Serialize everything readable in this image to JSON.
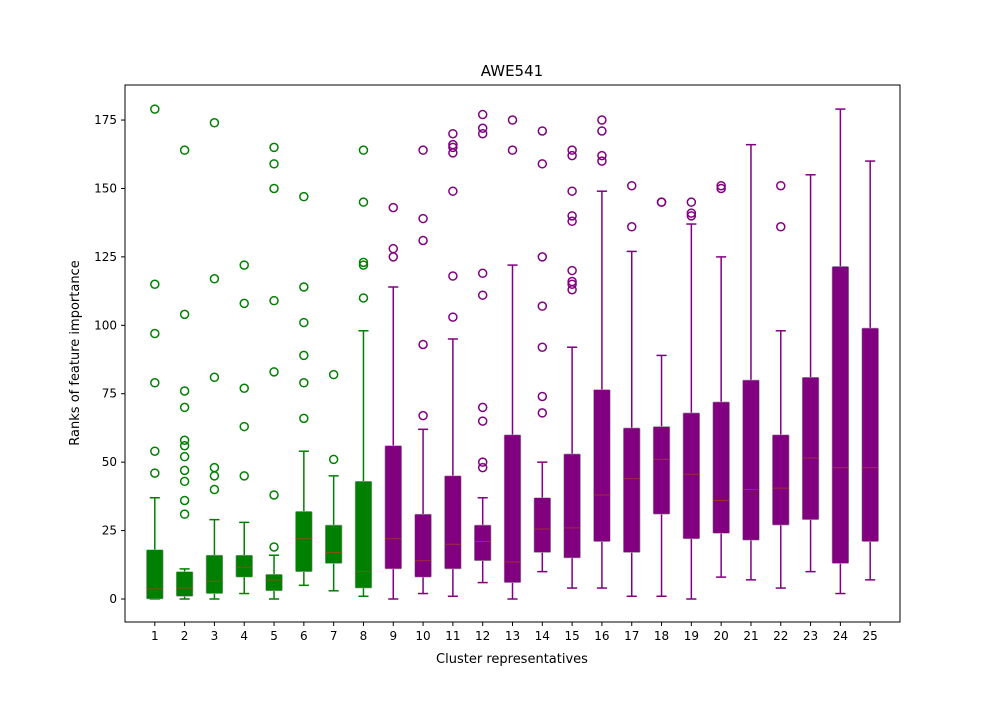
{
  "chart_data": {
    "type": "box",
    "title": "AWE541",
    "xlabel": "Cluster representatives",
    "ylabel": "Ranks of feature importance",
    "xlim": [
      0,
      26
    ],
    "ylim": [
      -8.4,
      187.8
    ],
    "yticks": [
      0,
      25,
      50,
      75,
      100,
      125,
      150,
      175
    ],
    "grid": false,
    "categories": [
      "1",
      "2",
      "3",
      "4",
      "5",
      "6",
      "7",
      "8",
      "9",
      "10",
      "11",
      "12",
      "13",
      "14",
      "15",
      "16",
      "17",
      "18",
      "19",
      "20",
      "21",
      "22",
      "23",
      "24",
      "25"
    ],
    "colors": {
      "group_a": "#008000",
      "group_b": "#800080",
      "median": "#b04020"
    },
    "boxes": [
      {
        "label": "1",
        "group": "a",
        "whislo": 0,
        "q1": 0,
        "med": 3.7,
        "q3": 18,
        "whishi": 37,
        "fliers": [
          46,
          54,
          79,
          97,
          115,
          179
        ]
      },
      {
        "label": "2",
        "group": "a",
        "whislo": 0,
        "q1": 1,
        "med": 4,
        "q3": 10,
        "whishi": 11,
        "fliers": [
          31,
          36,
          43,
          47,
          52,
          56,
          58,
          70,
          76,
          104,
          164
        ]
      },
      {
        "label": "3",
        "group": "a",
        "whislo": 0,
        "q1": 2,
        "med": 6.5,
        "q3": 16,
        "whishi": 29,
        "fliers": [
          40,
          45,
          48,
          81,
          117,
          174
        ]
      },
      {
        "label": "4",
        "group": "a",
        "whislo": 2,
        "q1": 8,
        "med": 11.6,
        "q3": 16,
        "whishi": 28,
        "fliers": [
          45,
          63,
          77,
          108,
          122
        ]
      },
      {
        "label": "5",
        "group": "a",
        "whislo": 0,
        "q1": 3,
        "med": 7,
        "q3": 9,
        "whishi": 16,
        "fliers": [
          19,
          38,
          83,
          109,
          150,
          159,
          165
        ]
      },
      {
        "label": "6",
        "group": "a",
        "whislo": 5,
        "q1": 10,
        "med": 22,
        "q3": 32,
        "whishi": 54,
        "fliers": [
          66,
          79,
          89,
          101,
          114,
          147
        ]
      },
      {
        "label": "7",
        "group": "a",
        "whislo": 3,
        "q1": 13,
        "med": 17,
        "q3": 27,
        "whishi": 45,
        "fliers": [
          51,
          82
        ]
      },
      {
        "label": "8",
        "group": "a",
        "whislo": 1,
        "q1": 4,
        "med": 10,
        "q3": 43,
        "whishi": 98,
        "fliers": [
          110,
          122,
          123,
          145,
          164
        ]
      },
      {
        "label": "9",
        "group": "b",
        "whislo": 0,
        "q1": 11,
        "med": 22,
        "q3": 56,
        "whishi": 114,
        "fliers": [
          125,
          128,
          143
        ]
      },
      {
        "label": "10",
        "group": "b",
        "whislo": 2,
        "q1": 8,
        "med": 14,
        "q3": 31,
        "whishi": 62,
        "fliers": [
          67,
          93,
          131,
          139,
          164
        ]
      },
      {
        "label": "11",
        "group": "b",
        "whislo": 1,
        "q1": 11,
        "med": 20,
        "q3": 45,
        "whishi": 95,
        "fliers": [
          103,
          118,
          149,
          163,
          165,
          166,
          170
        ]
      },
      {
        "label": "12",
        "group": "b",
        "whislo": 6,
        "q1": 14,
        "med": 21,
        "q3": 27,
        "whishi": 37,
        "fliers": [
          48,
          50,
          65,
          70,
          111,
          119,
          170,
          172,
          177
        ]
      },
      {
        "label": "13",
        "group": "b",
        "whislo": 0,
        "q1": 6,
        "med": 13.5,
        "q3": 60,
        "whishi": 122,
        "fliers": [
          164,
          175
        ]
      },
      {
        "label": "14",
        "group": "b",
        "whislo": 10,
        "q1": 17,
        "med": 25.6,
        "q3": 37,
        "whishi": 50,
        "fliers": [
          68,
          74,
          92,
          107,
          125,
          159,
          171
        ]
      },
      {
        "label": "15",
        "group": "b",
        "whislo": 4,
        "q1": 15,
        "med": 26,
        "q3": 53,
        "whishi": 92,
        "fliers": [
          113,
          115,
          116,
          120,
          138,
          140,
          149,
          162,
          164
        ]
      },
      {
        "label": "16",
        "group": "b",
        "whislo": 4,
        "q1": 21,
        "med": 38,
        "q3": 76.5,
        "whishi": 149,
        "fliers": [
          160,
          162,
          171,
          175
        ]
      },
      {
        "label": "17",
        "group": "b",
        "whislo": 1,
        "q1": 17,
        "med": 44,
        "q3": 62.5,
        "whishi": 127,
        "fliers": [
          136,
          151
        ]
      },
      {
        "label": "18",
        "group": "b",
        "whislo": 1,
        "q1": 31,
        "med": 51,
        "q3": 63,
        "whishi": 89,
        "fliers": [
          145,
          145
        ]
      },
      {
        "label": "19",
        "group": "b",
        "whislo": 0,
        "q1": 22,
        "med": 45.6,
        "q3": 68,
        "whishi": 137,
        "fliers": [
          140,
          141,
          145
        ]
      },
      {
        "label": "20",
        "group": "b",
        "whislo": 8,
        "q1": 24,
        "med": 36,
        "q3": 72,
        "whishi": 125,
        "fliers": [
          150,
          151
        ]
      },
      {
        "label": "21",
        "group": "b",
        "whislo": 7,
        "q1": 21.5,
        "med": 40,
        "q3": 80,
        "whishi": 166,
        "fliers": []
      },
      {
        "label": "22",
        "group": "b",
        "whislo": 4,
        "q1": 27,
        "med": 40.5,
        "q3": 60,
        "whishi": 98,
        "fliers": [
          136,
          151
        ]
      },
      {
        "label": "23",
        "group": "b",
        "whislo": 10,
        "q1": 29,
        "med": 51.5,
        "q3": 81,
        "whishi": 155,
        "fliers": []
      },
      {
        "label": "24",
        "group": "b",
        "whislo": 2,
        "q1": 13,
        "med": 48,
        "q3": 121.5,
        "whishi": 179,
        "fliers": []
      },
      {
        "label": "25",
        "group": "b",
        "whislo": 7,
        "q1": 21,
        "med": 48,
        "q3": 99,
        "whishi": 160,
        "fliers": []
      }
    ]
  }
}
